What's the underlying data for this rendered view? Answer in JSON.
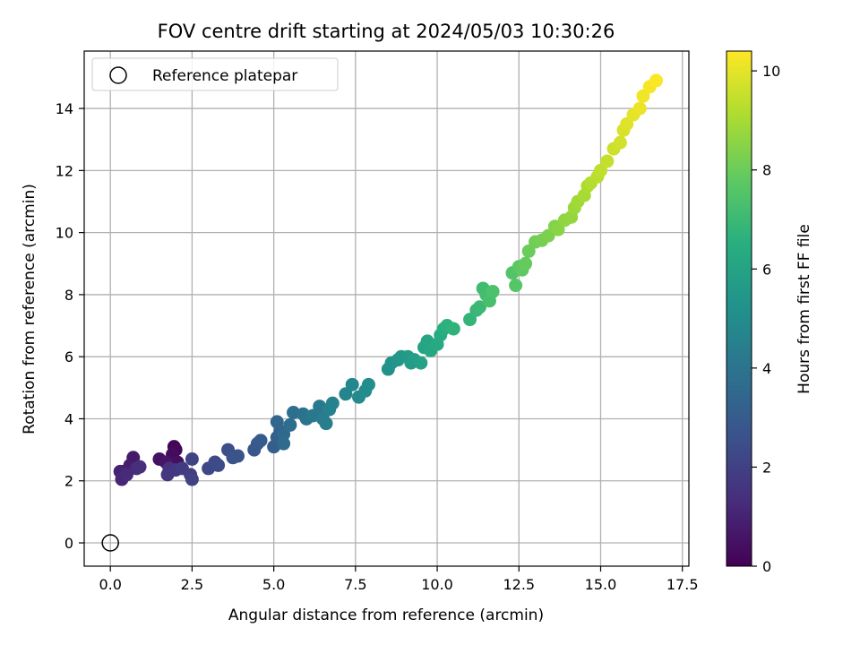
{
  "chart_data": {
    "type": "scatter",
    "title": "FOV centre drift starting at 2024/05/03 10:30:26",
    "xlabel": "Angular distance from reference (arcmin)",
    "ylabel": "Rotation from reference (arcmin)",
    "xlim": [
      -0.8,
      17.7
    ],
    "ylim": [
      -0.75,
      15.85
    ],
    "x_ticks": [
      0.0,
      2.5,
      5.0,
      7.5,
      10.0,
      12.5,
      15.0,
      17.5
    ],
    "x_tick_labels": [
      "0.0",
      "2.5",
      "5.0",
      "7.5",
      "10.0",
      "12.5",
      "15.0",
      "17.5"
    ],
    "y_ticks": [
      0,
      2,
      4,
      6,
      8,
      10,
      12,
      14
    ],
    "y_tick_labels": [
      "0",
      "2",
      "4",
      "6",
      "8",
      "10",
      "12",
      "14"
    ],
    "grid": true,
    "legend": {
      "placement": "top-left",
      "entries": [
        "Reference platepar"
      ]
    },
    "reference_point": {
      "x": 0.0,
      "y": 0.0,
      "label": "Reference platepar"
    },
    "colorbar": {
      "label": "Hours from first FF file",
      "colormap": "viridis",
      "range": [
        0,
        10.4
      ],
      "ticks": [
        0,
        2,
        4,
        6,
        8,
        10
      ],
      "tick_labels": [
        "0",
        "2",
        "4",
        "6",
        "8",
        "10"
      ]
    },
    "series": [
      {
        "points": [
          [
            1.95,
            3.1,
            0.1
          ],
          [
            2.0,
            3.0,
            0.2
          ],
          [
            1.9,
            2.85,
            0.3
          ],
          [
            2.05,
            2.6,
            0.4
          ],
          [
            1.5,
            2.7,
            0.5
          ],
          [
            1.7,
            2.6,
            0.6
          ],
          [
            0.7,
            2.75,
            0.7
          ],
          [
            0.6,
            2.5,
            0.8
          ],
          [
            0.4,
            2.3,
            0.9
          ],
          [
            0.3,
            2.3,
            1.0
          ],
          [
            0.35,
            2.05,
            1.1
          ],
          [
            0.5,
            2.2,
            1.2
          ],
          [
            0.8,
            2.4,
            1.3
          ],
          [
            0.9,
            2.45,
            1.4
          ],
          [
            1.8,
            2.4,
            1.5
          ],
          [
            1.75,
            2.2,
            1.6
          ],
          [
            2.0,
            2.35,
            1.7
          ],
          [
            2.2,
            2.4,
            1.8
          ],
          [
            2.45,
            2.2,
            1.9
          ],
          [
            2.5,
            2.05,
            2.0
          ],
          [
            2.5,
            2.7,
            2.1
          ],
          [
            3.0,
            2.4,
            2.2
          ],
          [
            3.2,
            2.6,
            2.3
          ],
          [
            3.3,
            2.5,
            2.4
          ],
          [
            3.6,
            3.0,
            2.5
          ],
          [
            3.75,
            2.75,
            2.6
          ],
          [
            3.9,
            2.8,
            2.7
          ],
          [
            4.4,
            3.0,
            2.8
          ],
          [
            4.5,
            3.2,
            2.9
          ],
          [
            4.6,
            3.3,
            3.0
          ],
          [
            5.0,
            3.1,
            3.1
          ],
          [
            5.1,
            3.4,
            3.2
          ],
          [
            5.2,
            3.6,
            3.3
          ],
          [
            5.1,
            3.9,
            3.4
          ],
          [
            5.3,
            3.5,
            3.5
          ],
          [
            5.3,
            3.2,
            3.6
          ],
          [
            5.5,
            3.8,
            3.7
          ],
          [
            5.6,
            4.2,
            3.8
          ],
          [
            5.9,
            4.15,
            3.9
          ],
          [
            6.0,
            4.0,
            4.0
          ],
          [
            6.2,
            4.1,
            4.1
          ],
          [
            6.4,
            4.4,
            4.2
          ],
          [
            6.5,
            4.0,
            4.3
          ],
          [
            6.6,
            3.85,
            4.4
          ],
          [
            6.7,
            4.3,
            4.5
          ],
          [
            6.8,
            4.5,
            4.6
          ],
          [
            7.2,
            4.8,
            4.7
          ],
          [
            7.4,
            5.1,
            4.8
          ],
          [
            7.6,
            4.7,
            4.9
          ],
          [
            7.8,
            4.9,
            5.0
          ],
          [
            7.9,
            5.1,
            5.1
          ],
          [
            8.5,
            5.6,
            5.2
          ],
          [
            8.6,
            5.8,
            5.3
          ],
          [
            8.8,
            5.9,
            5.4
          ],
          [
            8.9,
            6.0,
            5.5
          ],
          [
            9.1,
            6.0,
            5.6
          ],
          [
            9.2,
            5.8,
            5.7
          ],
          [
            9.3,
            5.9,
            5.8
          ],
          [
            9.5,
            5.8,
            5.9
          ],
          [
            9.6,
            6.3,
            6.0
          ],
          [
            9.7,
            6.5,
            6.1
          ],
          [
            9.8,
            6.2,
            6.2
          ],
          [
            10.0,
            6.4,
            6.3
          ],
          [
            10.1,
            6.7,
            6.4
          ],
          [
            10.2,
            6.9,
            6.5
          ],
          [
            10.3,
            7.0,
            6.6
          ],
          [
            10.5,
            6.9,
            6.7
          ],
          [
            11.0,
            7.2,
            6.8
          ],
          [
            11.2,
            7.5,
            6.9
          ],
          [
            11.3,
            7.6,
            7.0
          ],
          [
            11.4,
            8.2,
            7.1
          ],
          [
            11.5,
            8.0,
            7.2
          ],
          [
            11.6,
            7.8,
            7.3
          ],
          [
            11.7,
            8.1,
            7.4
          ],
          [
            12.3,
            8.7,
            7.5
          ],
          [
            12.4,
            8.3,
            7.6
          ],
          [
            12.5,
            8.9,
            7.7
          ],
          [
            12.6,
            8.8,
            7.8
          ],
          [
            12.7,
            9.0,
            7.9
          ],
          [
            12.8,
            9.4,
            8.0
          ],
          [
            13.0,
            9.7,
            8.1
          ],
          [
            13.2,
            9.75,
            8.2
          ],
          [
            13.4,
            9.9,
            8.3
          ],
          [
            13.6,
            10.2,
            8.4
          ],
          [
            13.7,
            10.1,
            8.5
          ],
          [
            13.9,
            10.4,
            8.6
          ],
          [
            14.1,
            10.5,
            8.7
          ],
          [
            14.2,
            10.8,
            8.8
          ],
          [
            14.3,
            11.0,
            8.9
          ],
          [
            14.5,
            11.2,
            9.0
          ],
          [
            14.6,
            11.5,
            9.1
          ],
          [
            14.7,
            11.6,
            9.2
          ],
          [
            14.9,
            11.8,
            9.3
          ],
          [
            15.0,
            12.0,
            9.4
          ],
          [
            15.2,
            12.3,
            9.5
          ],
          [
            15.4,
            12.7,
            9.6
          ],
          [
            15.6,
            12.9,
            9.7
          ],
          [
            15.7,
            13.3,
            9.8
          ],
          [
            15.8,
            13.5,
            9.9
          ],
          [
            16.0,
            13.8,
            10.0
          ],
          [
            16.2,
            14.0,
            10.1
          ],
          [
            16.3,
            14.4,
            10.2
          ],
          [
            16.5,
            14.7,
            10.3
          ],
          [
            16.7,
            14.9,
            10.35
          ]
        ]
      }
    ]
  }
}
